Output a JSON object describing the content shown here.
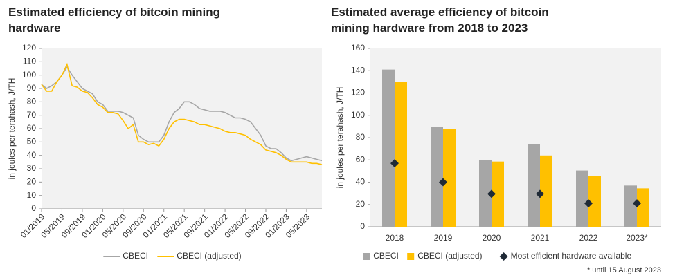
{
  "chart_data": [
    {
      "type": "line",
      "title": "Estimated efficiency of bitcoin mining hardware",
      "y_label": "in joules per terahash, J/TH",
      "categories": [
        "01/2019",
        null,
        null,
        null,
        "05/2019",
        null,
        null,
        null,
        "09/2019",
        null,
        null,
        null,
        "01/2020",
        null,
        null,
        null,
        "05/2020",
        null,
        null,
        null,
        "09/2020",
        null,
        null,
        null,
        "01/2021",
        null,
        null,
        null,
        "05/2021",
        null,
        null,
        null,
        "09/2021",
        null,
        null,
        null,
        "01/2022",
        null,
        null,
        null,
        "05/2022",
        null,
        null,
        null,
        "09/2022",
        null,
        null,
        null,
        "01/2023",
        null,
        null,
        null,
        "05/2023",
        null,
        null,
        null
      ],
      "series": [
        {
          "name": "CBECI",
          "color": "#a6a6a6",
          "values": [
            93,
            90,
            92,
            95,
            100,
            106,
            100,
            95,
            90,
            88,
            86,
            80,
            78,
            73,
            73,
            73,
            72,
            70,
            68,
            55,
            52,
            50,
            50,
            50,
            55,
            65,
            72,
            75,
            80,
            80,
            78,
            75,
            74,
            73,
            73,
            73,
            72,
            70,
            68,
            68,
            67,
            65,
            60,
            55,
            47,
            45,
            45,
            42,
            38,
            36,
            37,
            38,
            39,
            38,
            37,
            36
          ]
        },
        {
          "name": "CBECI (adjusted)",
          "color": "#ffc000",
          "values": [
            93,
            88,
            88,
            95,
            100,
            108,
            92,
            91,
            88,
            87,
            83,
            78,
            76,
            72,
            72,
            71,
            66,
            60,
            63,
            50,
            50,
            48,
            49,
            47,
            52,
            60,
            65,
            67,
            67,
            66,
            65,
            63,
            63,
            62,
            61,
            60,
            58,
            57,
            57,
            56,
            55,
            52,
            50,
            48,
            44,
            43,
            42,
            40,
            37,
            35,
            35,
            35,
            35,
            34,
            34,
            33
          ]
        }
      ],
      "ylim": [
        0,
        120
      ],
      "yticks": [
        0,
        10,
        20,
        30,
        40,
        50,
        60,
        70,
        80,
        90,
        100,
        110,
        120
      ],
      "grid": false,
      "legend": "bottom"
    },
    {
      "type": "bar",
      "title": "Estimated average efficiency of bitcoin mining hardware from 2018 to 2023",
      "y_label": "in joules per terahash, J/TH",
      "categories": [
        "2018",
        "2019",
        "2020",
        "2021",
        "2022",
        "2023*"
      ],
      "series": [
        {
          "name": "CBECI",
          "color": "#a6a6a6",
          "values": [
            141,
            89.5,
            60,
            74,
            50.5,
            37
          ]
        },
        {
          "name": "CBECI (adjusted)",
          "color": "#ffc000",
          "values": [
            130,
            88,
            58.5,
            64,
            45.5,
            34.5
          ]
        },
        {
          "name": "Most efficient hardware available",
          "color": "#1f2a36",
          "type": "scatter",
          "marker": "diamond",
          "values": [
            57,
            40,
            29.5,
            29.5,
            21,
            21
          ]
        }
      ],
      "ylim": [
        0,
        160
      ],
      "yticks": [
        0,
        20,
        40,
        60,
        80,
        100,
        120,
        140,
        160
      ],
      "grid": false,
      "legend": "bottom",
      "note": "* until 15 August 2023"
    }
  ]
}
